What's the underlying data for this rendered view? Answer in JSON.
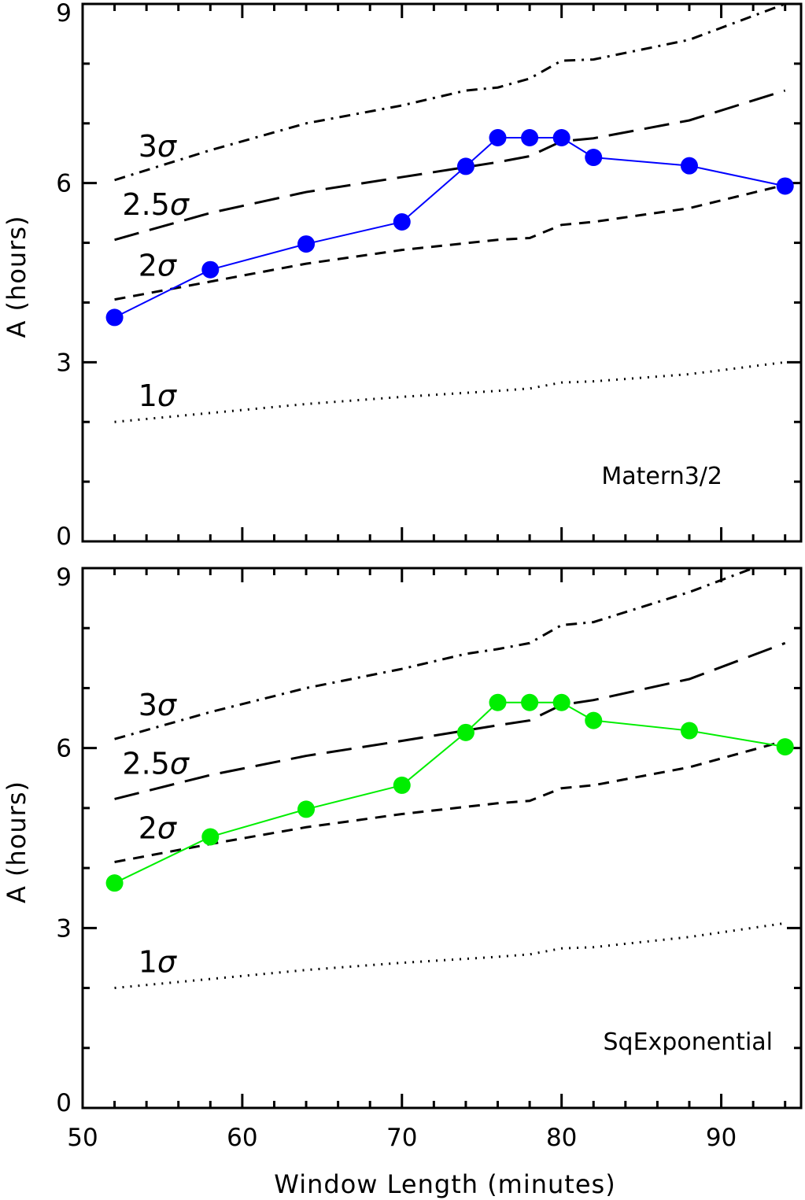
{
  "chart_data": [
    {
      "type": "line",
      "panel_label": "Matern3/2",
      "xlabel": "Window Length (minutes)",
      "ylabel": "A (hours)",
      "xlim": [
        50,
        95
      ],
      "ylim": [
        0,
        9
      ],
      "x_ticks": [
        50,
        60,
        70,
        80,
        90
      ],
      "y_ticks": [
        0,
        3,
        6,
        9
      ],
      "series": [
        {
          "color": "#0000ff",
          "marker": "circle",
          "x": [
            52,
            58,
            64,
            70,
            74,
            76,
            78,
            80,
            82,
            88,
            94
          ],
          "y": [
            3.75,
            4.55,
            4.98,
            5.35,
            6.28,
            6.76,
            6.76,
            6.76,
            6.43,
            6.29,
            5.95
          ]
        }
      ],
      "reference_lines": [
        {
          "label": "1",
          "dash": "dotted",
          "x": [
            52,
            58,
            64,
            70,
            76,
            78,
            80,
            82,
            88,
            94
          ],
          "y": [
            2.0,
            2.15,
            2.3,
            2.42,
            2.52,
            2.56,
            2.66,
            2.68,
            2.8,
            3.0
          ]
        },
        {
          "label": "2",
          "dash": "short-dash",
          "x": [
            52,
            58,
            64,
            70,
            76,
            78,
            80,
            82,
            88,
            94
          ],
          "y": [
            4.05,
            4.35,
            4.65,
            4.88,
            5.05,
            5.08,
            5.3,
            5.35,
            5.58,
            5.97
          ]
        },
        {
          "label": "2.5",
          "dash": "long-dash",
          "x": [
            52,
            58,
            64,
            70,
            76,
            78,
            80,
            82,
            88,
            94
          ],
          "y": [
            5.05,
            5.5,
            5.85,
            6.1,
            6.35,
            6.45,
            6.7,
            6.75,
            7.05,
            7.55
          ]
        },
        {
          "label": "3",
          "dash": "dash-dot",
          "x": [
            52,
            58,
            64,
            70,
            74,
            76,
            78,
            80,
            82,
            88,
            94
          ],
          "y": [
            6.05,
            6.55,
            7.0,
            7.3,
            7.55,
            7.6,
            7.75,
            8.05,
            8.07,
            8.4,
            9.0
          ]
        }
      ]
    },
    {
      "type": "line",
      "panel_label": "SqExponential",
      "xlabel": "Window Length (minutes)",
      "ylabel": "A (hours)",
      "xlim": [
        50,
        95
      ],
      "ylim": [
        0,
        9
      ],
      "x_ticks": [
        50,
        60,
        70,
        80,
        90
      ],
      "y_ticks": [
        0,
        3,
        6,
        9
      ],
      "series": [
        {
          "color": "#00ee00",
          "marker": "circle",
          "x": [
            52,
            58,
            64,
            70,
            74,
            76,
            78,
            80,
            82,
            88,
            94
          ],
          "y": [
            3.75,
            4.52,
            4.98,
            5.38,
            6.26,
            6.76,
            6.76,
            6.76,
            6.46,
            6.29,
            6.02
          ]
        }
      ],
      "reference_lines": [
        {
          "label": "1",
          "dash": "dotted",
          "x": [
            52,
            58,
            64,
            70,
            76,
            78,
            80,
            82,
            88,
            94
          ],
          "y": [
            2.0,
            2.15,
            2.3,
            2.42,
            2.52,
            2.56,
            2.66,
            2.68,
            2.85,
            3.08
          ]
        },
        {
          "label": "2",
          "dash": "short-dash",
          "x": [
            52,
            58,
            64,
            70,
            76,
            78,
            80,
            82,
            88,
            94
          ],
          "y": [
            4.1,
            4.4,
            4.68,
            4.9,
            5.08,
            5.12,
            5.33,
            5.38,
            5.68,
            6.12
          ]
        },
        {
          "label": "2.5",
          "dash": "long-dash",
          "x": [
            52,
            58,
            64,
            70,
            76,
            78,
            80,
            82,
            88,
            94
          ],
          "y": [
            5.15,
            5.55,
            5.87,
            6.12,
            6.38,
            6.46,
            6.72,
            6.8,
            7.15,
            7.75
          ]
        },
        {
          "label": "3",
          "dash": "dash-dot",
          "x": [
            52,
            58,
            64,
            70,
            74,
            76,
            78,
            80,
            82,
            88,
            92
          ],
          "y": [
            6.15,
            6.6,
            7.0,
            7.32,
            7.57,
            7.65,
            7.75,
            8.05,
            8.1,
            8.6,
            9.0
          ]
        }
      ]
    }
  ]
}
